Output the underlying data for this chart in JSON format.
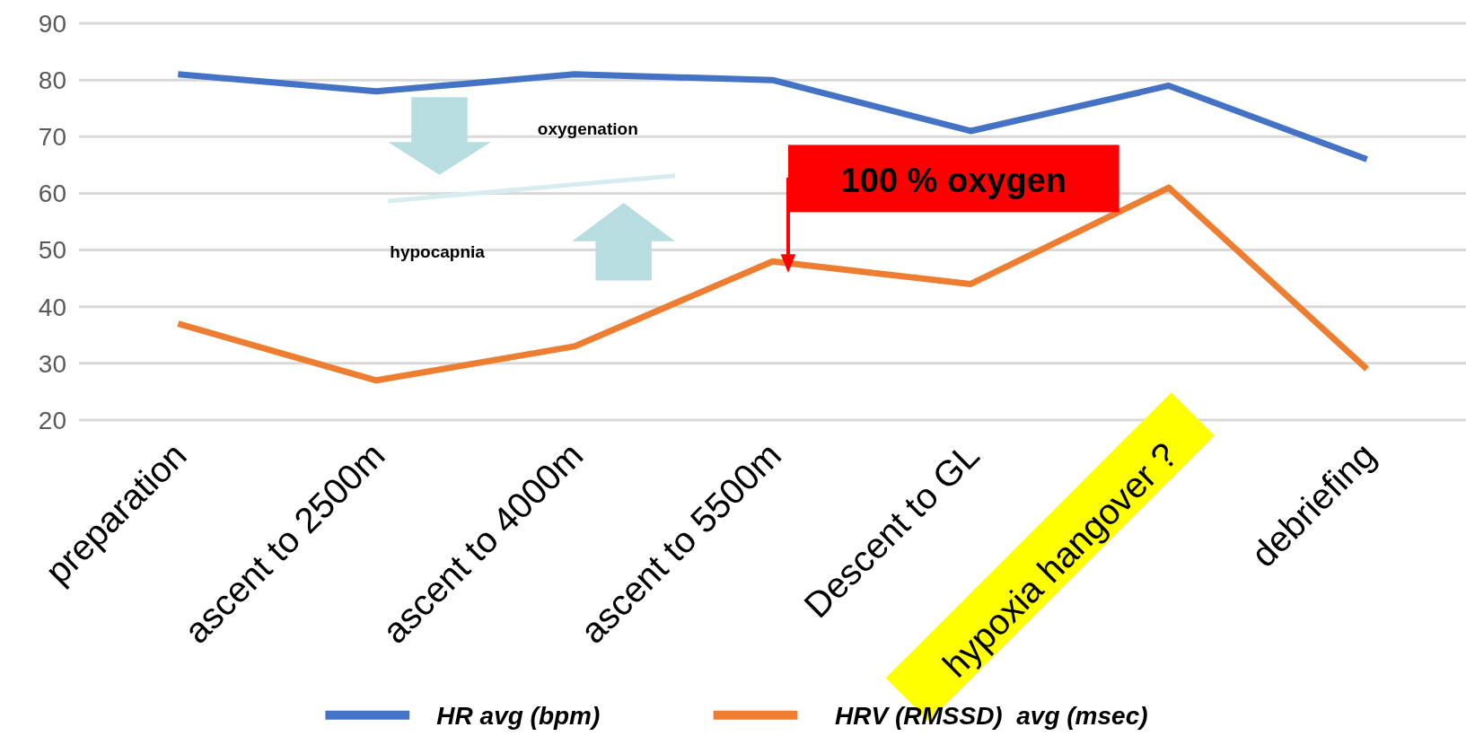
{
  "chart_data": {
    "type": "line",
    "categories": [
      "preparation",
      "ascent to 2500m",
      "ascent to 4000m",
      "ascent to 5500m",
      "Descent to GL",
      "hypoxia hangover ?",
      "debriefing"
    ],
    "series": [
      {
        "name": "HR avg (bpm)",
        "color": "#4472c4",
        "values": [
          81,
          78,
          81,
          80,
          71,
          79,
          66
        ]
      },
      {
        "name": "HRV (RMSSD)  avg (msec)",
        "color": "#ed7d31",
        "values": [
          37,
          27,
          33,
          48,
          44,
          61,
          29
        ]
      }
    ],
    "ylim": [
      20,
      90
    ],
    "yticks": [
      20,
      30,
      40,
      50,
      60,
      70,
      80,
      90
    ],
    "grid": "y",
    "legend": "bottom",
    "marker": "none",
    "line_style": "solid",
    "annotations": [
      "oxygenation",
      "hypocapnia",
      "100 % oxygen"
    ]
  }
}
